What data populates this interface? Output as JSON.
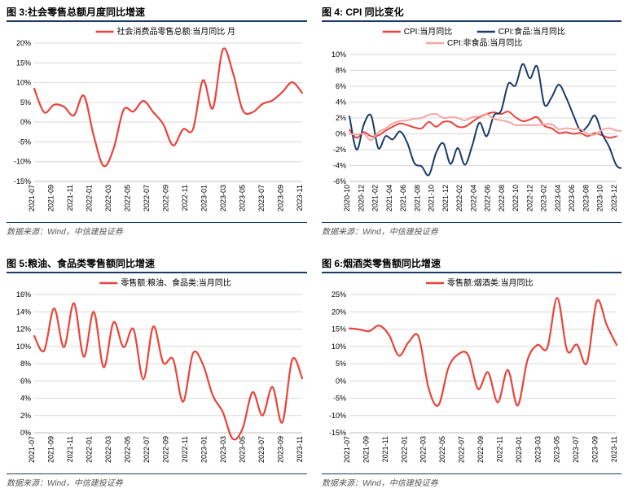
{
  "global": {
    "source_text": "数据来源：Wind，中信建投证券",
    "colors": {
      "title_border": "#1a3a6b",
      "source_border": "#1a3a6b",
      "grid": "#d9d9d9",
      "axis": "#bfbfbf",
      "text": "#000000",
      "tick_text": "#000000"
    },
    "axis_fontsize": 9,
    "legend_fontsize": 10,
    "title_fontsize": 12
  },
  "chart3": {
    "title": "图 3:社会零售总额月度同比增速",
    "type": "line",
    "legend": [
      {
        "label": "社会消费品零售总额:当月同比 月",
        "color": "#e8443b"
      }
    ],
    "x_labels": [
      "2021-07",
      "2021-09",
      "2021-11",
      "2022-01",
      "2022-03",
      "2022-05",
      "2022-07",
      "2022-09",
      "2022-11",
      "2023-01",
      "2023-03",
      "2023-05",
      "2023-07",
      "2023-09",
      "2023-11"
    ],
    "ylim": [
      -15,
      20
    ],
    "yticks": [
      -15,
      -10,
      -5,
      0,
      5,
      10,
      15,
      20
    ],
    "series": [
      {
        "color": "#e8443b",
        "width": 2.2,
        "values": [
          8.5,
          2.5,
          4.4,
          3.9,
          1.7,
          6.7,
          -3.5,
          -11.1,
          -6.7,
          3.1,
          2.7,
          5.4,
          2.5,
          -0.5,
          -5.9,
          -1.8,
          -1.8,
          10.6,
          3.5,
          18.4,
          12.7,
          3.1,
          2.5,
          4.6,
          5.5,
          7.6,
          10.1,
          7.4
        ]
      }
    ],
    "line_style": "smooth",
    "background_color": "#ffffff"
  },
  "chart4": {
    "title": "图 4: CPI 同比变化",
    "type": "line",
    "legend": [
      {
        "label": "CPI:当月同比",
        "color": "#e8443b"
      },
      {
        "label": "CPI:食品:当月同比",
        "color": "#1a3a6b"
      },
      {
        "label": "CPI:非食品:当月同比",
        "color": "#f5a6a0"
      }
    ],
    "x_labels": [
      "2020-10",
      "2020-12",
      "2021-02",
      "2021-04",
      "2021-06",
      "2021-08",
      "2021-10",
      "2021-12",
      "2022-02",
      "2022-04",
      "2022-06",
      "2022-08",
      "2022-10",
      "2022-12",
      "2023-02",
      "2023-04",
      "2023-06",
      "2023-08",
      "2023-10",
      "2023-12"
    ],
    "ylim": [
      -6,
      10
    ],
    "yticks": [
      -6,
      -4,
      -2,
      0,
      2,
      4,
      6,
      8,
      10
    ],
    "series": [
      {
        "color": "#e8443b",
        "width": 2,
        "values": [
          0.5,
          -0.5,
          0.2,
          -0.3,
          -0.2,
          0.4,
          0.9,
          1.3,
          1.1,
          0.8,
          0.7,
          1.5,
          0.9,
          1.5,
          1.5,
          0.9,
          0.9,
          1.5,
          2.1,
          2.5,
          2.7,
          2.5,
          2.8,
          2.1,
          1.6,
          1.8,
          2.1,
          1.0,
          0.7,
          0.1,
          0.2,
          0.0,
          0.1,
          -0.3,
          0.1,
          -0.2,
          -0.5,
          -0.3
        ]
      },
      {
        "color": "#1a3a6b",
        "width": 2,
        "values": [
          2.2,
          -2.0,
          1.2,
          2.3,
          -1.8,
          -0.3,
          -0.7,
          0.3,
          -1.1,
          -3.7,
          -4.1,
          -5.2,
          -2.4,
          -1.2,
          -3.8,
          -1.8,
          -3.9,
          -1.5,
          1.4,
          -0.3,
          2.3,
          2.9,
          6.3,
          6.1,
          8.8,
          7.0,
          8.5,
          3.7,
          4.6,
          6.2,
          4.6,
          2.4,
          0.4,
          1.0,
          2.3,
          0.0,
          -1.7,
          -4.0,
          -4.2,
          -3.2,
          -4.0,
          -3.7
        ]
      },
      {
        "color": "#f5a6a0",
        "width": 2,
        "values": [
          0.0,
          -0.1,
          0.0,
          -0.8,
          0.2,
          0.7,
          1.3,
          1.6,
          1.7,
          1.9,
          2.0,
          2.4,
          2.5,
          2.0,
          2.1,
          2.0,
          1.7,
          2.1,
          2.2,
          2.5,
          1.9,
          1.7,
          1.5,
          1.1,
          1.1,
          1.1,
          1.1,
          1.2,
          1.2,
          0.6,
          0.7,
          0.6,
          0.6,
          0.0,
          -0.1,
          0.5,
          0.7,
          0.4,
          0.4,
          0.5
        ]
      }
    ],
    "line_style": "smooth",
    "background_color": "#ffffff"
  },
  "chart5": {
    "title": "图 5:粮油、食品类零售额同比增速",
    "type": "line",
    "legend": [
      {
        "label": "零售额:粮油、食品类:当月同比",
        "color": "#e8443b"
      }
    ],
    "x_labels": [
      "2021-07",
      "2021-09",
      "2021-11",
      "2022-01",
      "2022-03",
      "2022-05",
      "2022-07",
      "2022-09",
      "2022-11",
      "2023-01",
      "2023-03",
      "2023-05",
      "2023-07",
      "2023-09",
      "2023-11"
    ],
    "ylim": [
      0,
      16
    ],
    "yticks": [
      0,
      2,
      4,
      6,
      8,
      10,
      12,
      14,
      16
    ],
    "series": [
      {
        "color": "#e8443b",
        "width": 2.2,
        "values": [
          11.2,
          9.5,
          14.4,
          9.9,
          15.0,
          8.8,
          14.0,
          7.6,
          12.8,
          9.9,
          12.0,
          6.2,
          12.3,
          8.1,
          8.5,
          3.6,
          9.2,
          7.9,
          4.3,
          2.4,
          -0.7,
          0.5,
          4.7,
          2.0,
          5.3,
          1.2,
          8.5,
          6.3
        ]
      }
    ],
    "line_style": "smooth",
    "background_color": "#ffffff"
  },
  "chart6": {
    "title": "图 6:烟酒类零售额同比增速",
    "type": "line",
    "legend": [
      {
        "label": "零售额:烟酒类:当月同比",
        "color": "#e8443b"
      }
    ],
    "x_labels": [
      "2021-07",
      "2021-09",
      "2021-11",
      "2022-01",
      "2022-03",
      "2022-05",
      "2022-07",
      "2022-09",
      "2022-11",
      "2023-01",
      "2023-03",
      "2023-05",
      "2023-07",
      "2023-09",
      "2023-11"
    ],
    "ylim": [
      -15,
      25
    ],
    "yticks": [
      -15,
      -10,
      -5,
      0,
      5,
      10,
      15,
      20,
      25
    ],
    "series": [
      {
        "color": "#e8443b",
        "width": 2.2,
        "values": [
          15.2,
          14.9,
          14.4,
          16.0,
          13.3,
          7.3,
          11.3,
          12.7,
          -2.1,
          -7.0,
          3.8,
          7.7,
          7.5,
          -2.3,
          2.5,
          -6.2,
          3.2,
          -7.1,
          6.1,
          10.4,
          9.6,
          24.0,
          8.8,
          10.5,
          5.2,
          23.1,
          16.2,
          10.4
        ]
      }
    ],
    "line_style": "smooth",
    "background_color": "#ffffff"
  }
}
